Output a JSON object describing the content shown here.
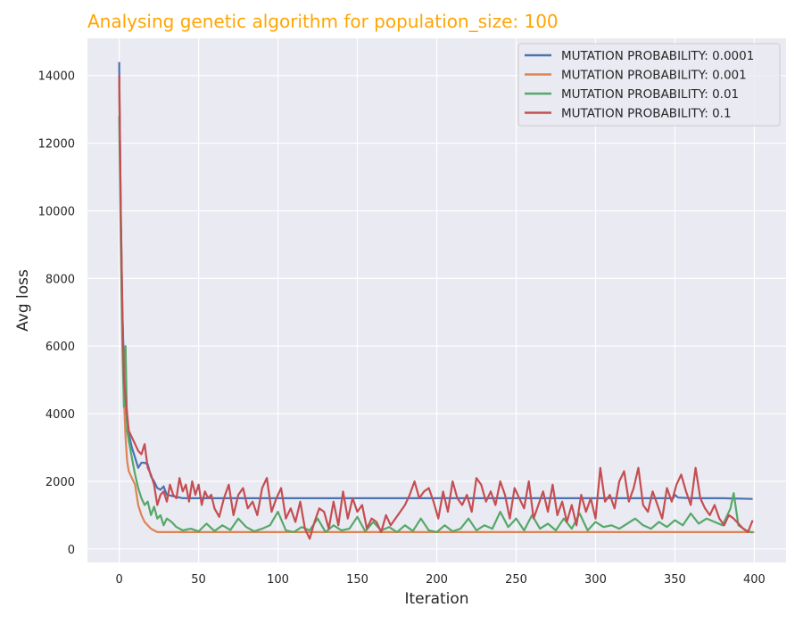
{
  "chart_data": {
    "type": "line",
    "title": "Analysing genetic algorithm for population_size: 100",
    "xlabel": "Iteration",
    "ylabel": "Avg loss",
    "xlim": [
      -20,
      420
    ],
    "ylim": [
      -400,
      15100
    ],
    "xticks": [
      0,
      50,
      100,
      150,
      200,
      250,
      300,
      350,
      400
    ],
    "yticks": [
      0,
      2000,
      4000,
      6000,
      8000,
      10000,
      12000,
      14000
    ],
    "grid": true,
    "legend_position": "top-right",
    "colors": {
      "title": "#ffa500",
      "background": "#eaeaf2",
      "grid": "#ffffff"
    },
    "series": [
      {
        "name": "MUTATION PROBABILITY: 0.0001",
        "color": "#4c72b0",
        "x": [
          0,
          1,
          2,
          3,
          4,
          5,
          6,
          8,
          10,
          12,
          14,
          16,
          18,
          20,
          22,
          24,
          26,
          28,
          30,
          35,
          40,
          50,
          60,
          70,
          80,
          100,
          120,
          150,
          200,
          250,
          300,
          349,
          350,
          352,
          360,
          380,
          399
        ],
        "y": [
          14400,
          9800,
          7000,
          5400,
          4300,
          3700,
          3400,
          3000,
          2700,
          2400,
          2550,
          2550,
          2500,
          2150,
          2000,
          1800,
          1750,
          1850,
          1600,
          1550,
          1500,
          1500,
          1500,
          1500,
          1500,
          1500,
          1500,
          1500,
          1500,
          1500,
          1500,
          1500,
          1600,
          1520,
          1500,
          1500,
          1480
        ]
      },
      {
        "name": "MUTATION PROBABILITY: 0.001",
        "color": "#dd8452",
        "x": [
          0,
          1,
          2,
          3,
          4,
          5,
          6,
          8,
          10,
          12,
          14,
          16,
          18,
          20,
          22,
          24,
          30,
          50,
          100,
          150,
          200,
          250,
          300,
          350,
          400
        ],
        "y": [
          13800,
          9500,
          6500,
          4500,
          3300,
          2600,
          2300,
          2100,
          1900,
          1300,
          1000,
          800,
          700,
          600,
          550,
          500,
          500,
          500,
          500,
          500,
          500,
          500,
          500,
          500,
          500
        ]
      },
      {
        "name": "MUTATION PROBABILITY: 0.01",
        "color": "#55a868",
        "x": [
          0,
          1,
          2,
          3,
          4,
          5,
          6,
          8,
          10,
          12,
          14,
          16,
          18,
          20,
          22,
          24,
          26,
          28,
          30,
          33,
          36,
          40,
          45,
          50,
          55,
          60,
          65,
          70,
          75,
          80,
          85,
          90,
          95,
          100,
          105,
          110,
          115,
          120,
          125,
          130,
          135,
          140,
          145,
          150,
          155,
          160,
          165,
          170,
          175,
          180,
          185,
          190,
          195,
          200,
          205,
          210,
          215,
          220,
          225,
          230,
          235,
          240,
          245,
          250,
          255,
          260,
          265,
          270,
          275,
          280,
          285,
          290,
          295,
          300,
          305,
          310,
          315,
          320,
          325,
          330,
          335,
          340,
          345,
          350,
          355,
          360,
          365,
          370,
          375,
          380,
          385,
          387,
          390,
          395,
          399
        ],
        "y": [
          12800,
          9000,
          6000,
          4200,
          6000,
          3500,
          3200,
          2700,
          2200,
          1800,
          1500,
          1300,
          1400,
          1000,
          1250,
          900,
          1000,
          700,
          900,
          800,
          650,
          550,
          600,
          520,
          750,
          530,
          700,
          560,
          900,
          650,
          520,
          600,
          700,
          1100,
          550,
          500,
          650,
          550,
          900,
          500,
          700,
          550,
          600,
          950,
          520,
          800,
          550,
          650,
          500,
          700,
          530,
          900,
          550,
          500,
          700,
          520,
          600,
          900,
          550,
          700,
          600,
          1100,
          650,
          900,
          550,
          1000,
          600,
          750,
          550,
          900,
          600,
          1050,
          550,
          800,
          650,
          700,
          600,
          750,
          900,
          700,
          600,
          800,
          650,
          850,
          700,
          1050,
          750,
          900,
          800,
          700,
          1200,
          1650,
          700,
          550,
          480
        ]
      },
      {
        "name": "MUTATION PROBABILITY: 0.1",
        "color": "#c44e52",
        "x": [
          0,
          1,
          2,
          3,
          4,
          5,
          6,
          8,
          10,
          12,
          14,
          16,
          18,
          20,
          22,
          24,
          26,
          28,
          30,
          32,
          34,
          36,
          38,
          40,
          42,
          44,
          46,
          48,
          50,
          52,
          54,
          56,
          58,
          60,
          63,
          66,
          69,
          72,
          75,
          78,
          81,
          84,
          87,
          90,
          93,
          96,
          99,
          102,
          105,
          108,
          111,
          114,
          117,
          120,
          123,
          126,
          129,
          132,
          135,
          138,
          141,
          144,
          147,
          150,
          153,
          156,
          159,
          162,
          165,
          168,
          171,
          174,
          177,
          180,
          183,
          186,
          189,
          192,
          195,
          198,
          201,
          204,
          207,
          210,
          213,
          216,
          219,
          222,
          225,
          228,
          231,
          234,
          237,
          240,
          243,
          246,
          249,
          252,
          255,
          258,
          261,
          264,
          267,
          270,
          273,
          276,
          279,
          282,
          285,
          288,
          291,
          294,
          297,
          300,
          303,
          306,
          309,
          312,
          315,
          318,
          321,
          324,
          327,
          330,
          333,
          336,
          339,
          342,
          345,
          348,
          351,
          354,
          357,
          360,
          363,
          366,
          369,
          372,
          375,
          378,
          381,
          384,
          387,
          390,
          393,
          396,
          399
        ],
        "y": [
          14000,
          10000,
          7000,
          5000,
          4500,
          4000,
          3500,
          3300,
          3100,
          2900,
          2800,
          3100,
          2400,
          2200,
          1900,
          1300,
          1600,
          1700,
          1400,
          1900,
          1600,
          1500,
          2100,
          1700,
          1900,
          1400,
          2000,
          1600,
          1900,
          1300,
          1700,
          1500,
          1600,
          1200,
          950,
          1500,
          1900,
          1000,
          1600,
          1800,
          1200,
          1400,
          1000,
          1800,
          2100,
          1100,
          1500,
          1800,
          900,
          1200,
          800,
          1400,
          600,
          300,
          800,
          1200,
          1100,
          600,
          1400,
          700,
          1700,
          900,
          1500,
          1100,
          1300,
          600,
          900,
          800,
          500,
          1000,
          700,
          900,
          1100,
          1300,
          1600,
          2000,
          1500,
          1700,
          1800,
          1400,
          900,
          1700,
          1100,
          2000,
          1500,
          1300,
          1600,
          1100,
          2100,
          1900,
          1400,
          1700,
          1300,
          2000,
          1600,
          900,
          1800,
          1500,
          1200,
          2000,
          900,
          1300,
          1700,
          1100,
          1900,
          1000,
          1400,
          800,
          1300,
          700,
          1600,
          1100,
          1500,
          900,
          2400,
          1400,
          1600,
          1200,
          2000,
          2300,
          1400,
          1800,
          2400,
          1300,
          1100,
          1700,
          1300,
          900,
          1800,
          1400,
          1900,
          2200,
          1700,
          1300,
          2400,
          1500,
          1200,
          1000,
          1300,
          900,
          700,
          1000,
          900,
          750,
          600,
          500,
          850
        ]
      }
    ]
  }
}
